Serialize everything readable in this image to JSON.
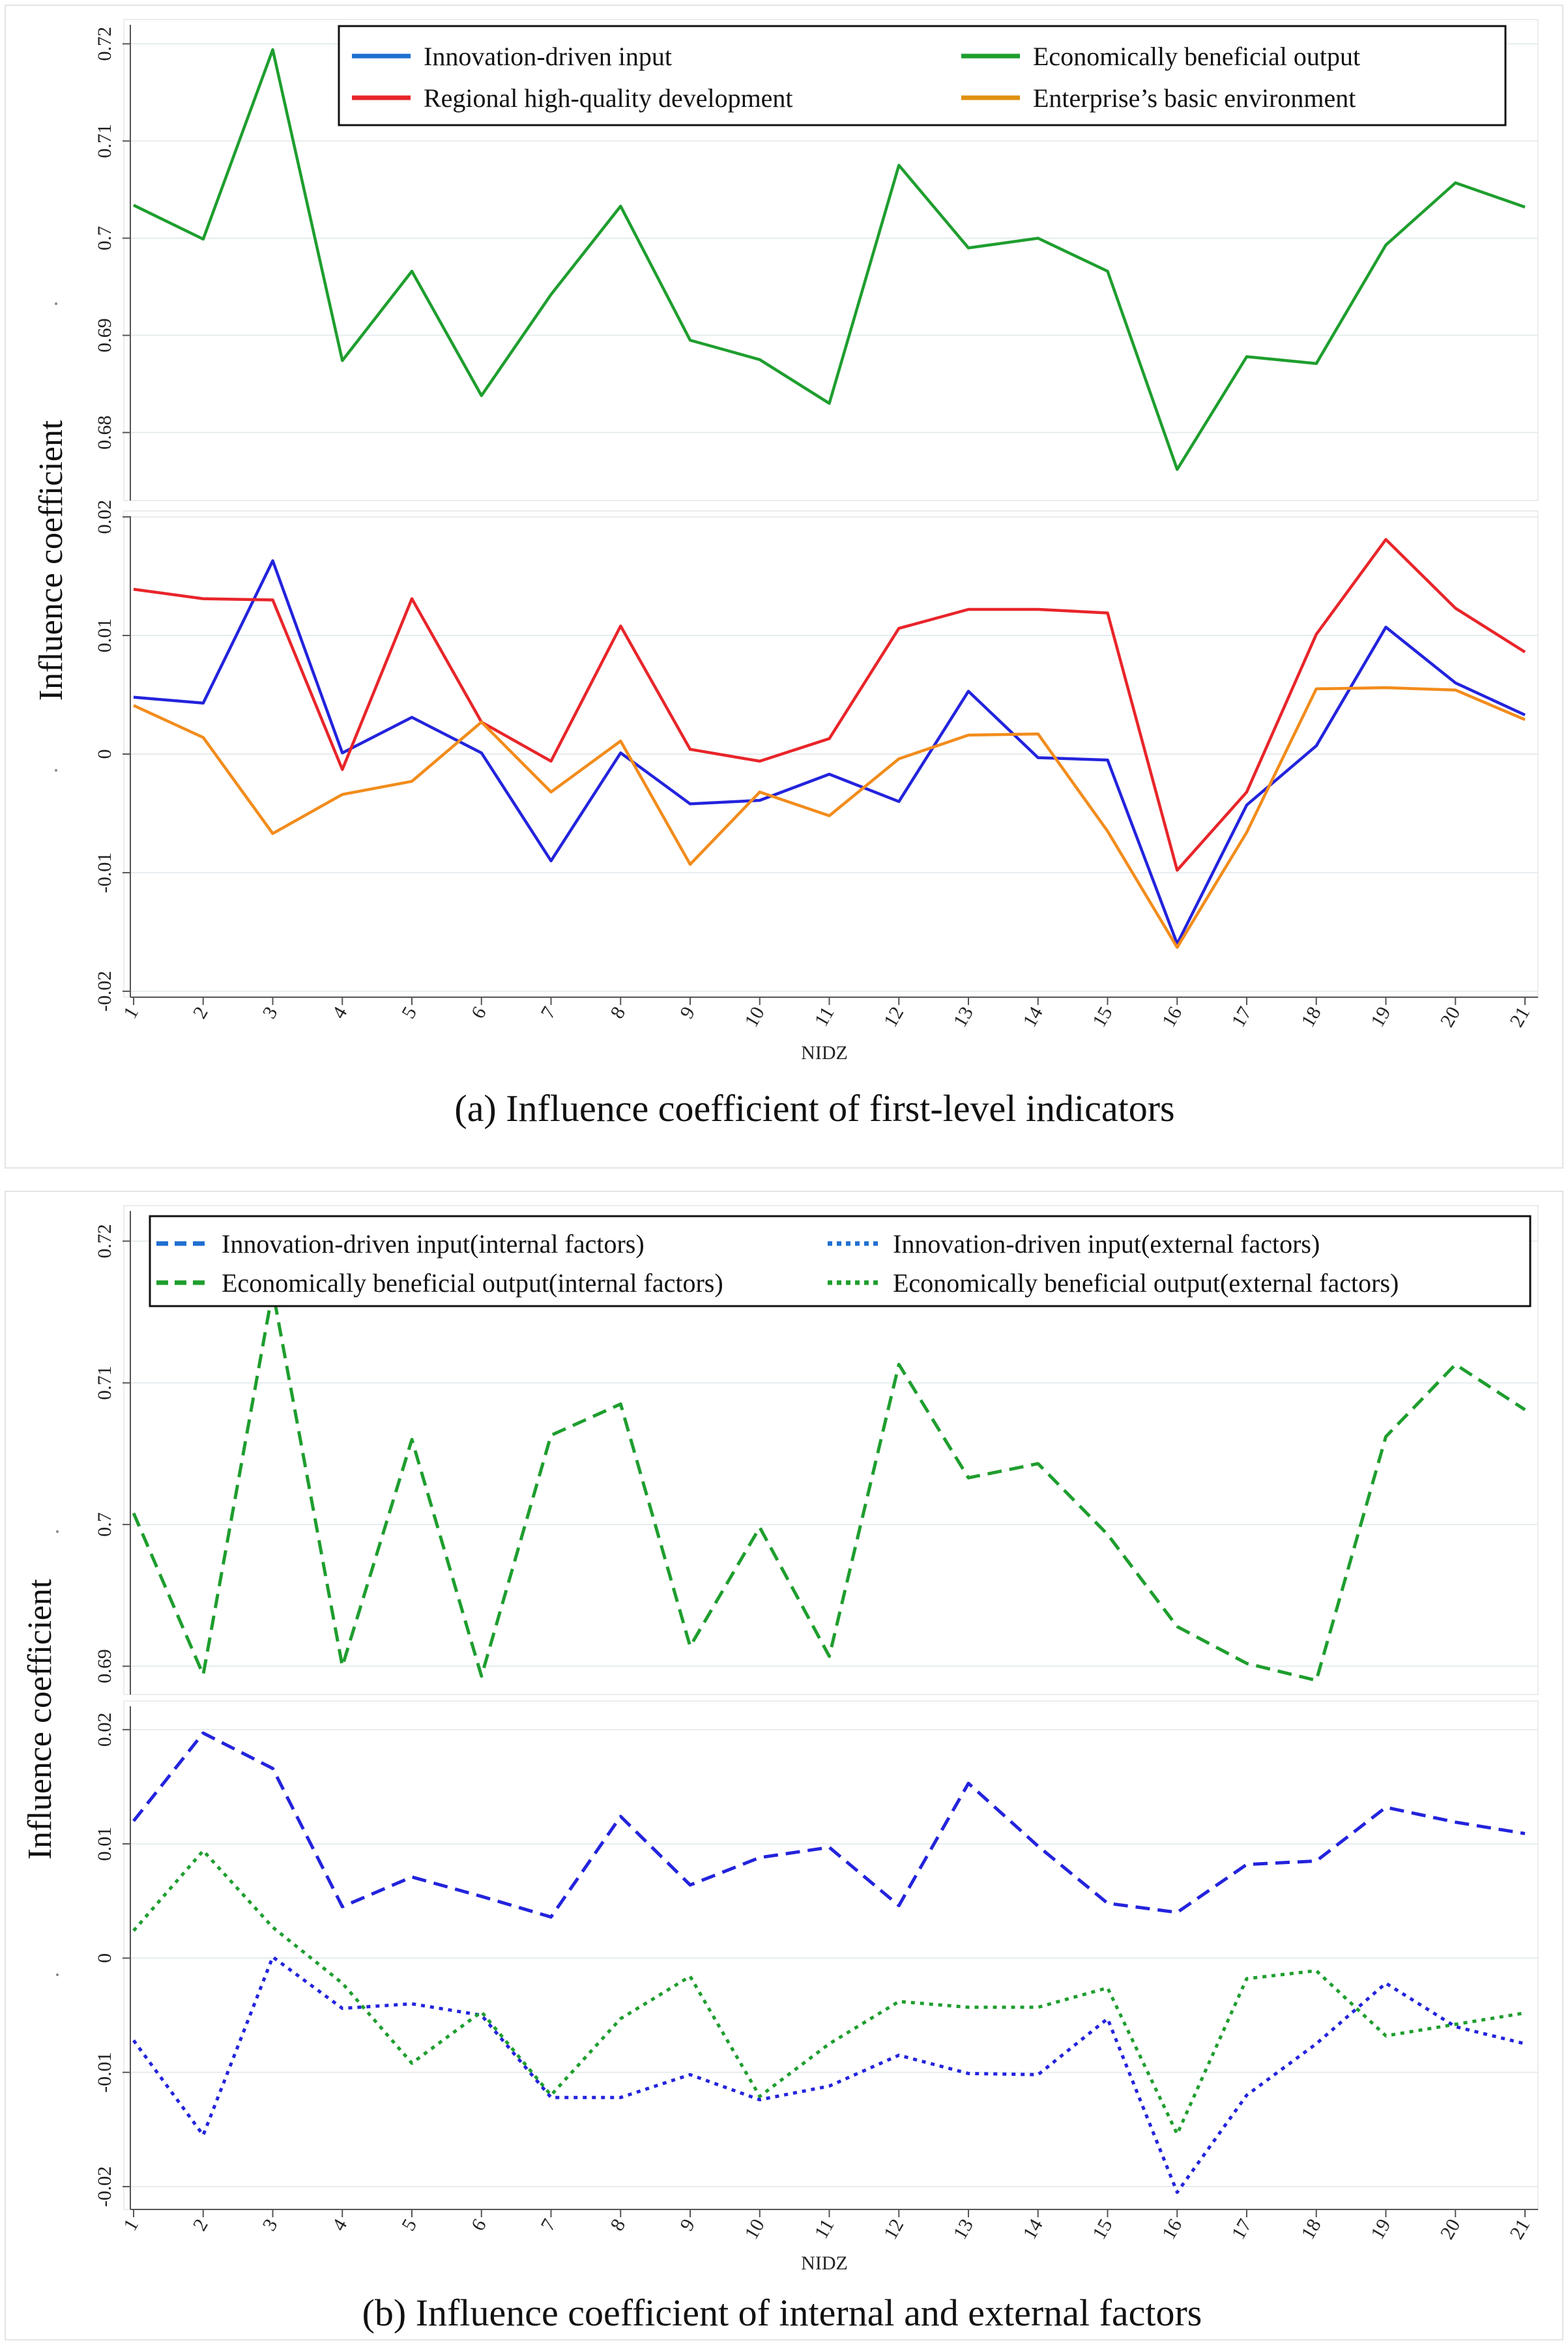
{
  "figure": {
    "caption_a": "(a) Influence coefficient of first-level indicators",
    "caption_b": "(b) Influence coefficient of internal and external factors",
    "y_axis_title": "Influence coefficient"
  },
  "chart_data": [
    {
      "id": "a-top",
      "type": "line",
      "xlabel": "",
      "ylabel": "Influence coefficient",
      "categories": [
        "1",
        "2",
        "3",
        "4",
        "5",
        "6",
        "7",
        "8",
        "9",
        "10",
        "11",
        "12",
        "13",
        "14",
        "15",
        "16",
        "17",
        "18",
        "19",
        "20",
        "21"
      ],
      "ylim": [
        0.673,
        0.7225
      ],
      "yticks": [
        0.68,
        0.69,
        0.7,
        0.71,
        0.72
      ],
      "ytick_labels": [
        "0.68",
        "0.69",
        "0.7",
        "0.71",
        "0.72"
      ],
      "series": [
        {
          "name": "Economically beneficial output",
          "color": "#1e9e2e",
          "dash": "solid",
          "values": [
            0.7034,
            0.6999,
            0.7194,
            0.6874,
            0.6966,
            0.6838,
            0.6942,
            0.7033,
            0.6895,
            0.6875,
            0.683,
            0.7075,
            0.699,
            0.7,
            0.6966,
            0.6762,
            0.6878,
            0.6871,
            0.6993,
            0.7057,
            0.7032
          ]
        }
      ]
    },
    {
      "id": "a-bottom",
      "type": "line",
      "xlabel": "NIDZ",
      "ylabel": "Influence coefficient",
      "categories": [
        "1",
        "2",
        "3",
        "4",
        "5",
        "6",
        "7",
        "8",
        "9",
        "10",
        "11",
        "12",
        "13",
        "14",
        "15",
        "16",
        "17",
        "18",
        "19",
        "20",
        "21"
      ],
      "ylim": [
        -0.0205,
        0.0205
      ],
      "yticks": [
        -0.02,
        -0.01,
        0,
        0.01,
        0.02
      ],
      "ytick_labels": [
        "-0.02",
        "-0.01",
        "0",
        "0.01",
        "0.02"
      ],
      "series": [
        {
          "name": "Innovation-driven input",
          "color": "#2323dd",
          "dash": "solid",
          "values": [
            0.0048,
            0.0043,
            0.0163,
            0.0001,
            0.0031,
            0.0001,
            -0.009,
            0.0001,
            -0.0042,
            -0.0039,
            -0.0017,
            -0.004,
            0.0053,
            -0.0003,
            -0.0005,
            -0.016,
            -0.0043,
            0.0007,
            0.0107,
            0.006,
            0.0033
          ]
        },
        {
          "name": "Regional high-quality development",
          "color": "#e8252a",
          "dash": "solid",
          "values": [
            0.0139,
            0.0131,
            0.013,
            -0.0013,
            0.0131,
            0.0027,
            -0.0006,
            0.0108,
            0.0004,
            -0.0006,
            0.0013,
            0.0106,
            0.0122,
            0.0122,
            0.0119,
            -0.0098,
            -0.0032,
            0.0101,
            0.0181,
            0.0123,
            0.0086
          ]
        },
        {
          "name": "Enterprise’s basic environment",
          "color": "#f28c1c",
          "dash": "solid",
          "values": [
            0.0041,
            0.0014,
            -0.0067,
            -0.0034,
            -0.0023,
            0.0027,
            -0.0032,
            0.0011,
            -0.0093,
            -0.0032,
            -0.0052,
            -0.0004,
            0.0016,
            0.0017,
            -0.0065,
            -0.0163,
            -0.0066,
            0.0055,
            0.0056,
            0.0054,
            0.0029
          ]
        }
      ]
    },
    {
      "id": "b-top",
      "type": "line",
      "xlabel": "",
      "ylabel": "Influence coefficient",
      "categories": [
        "1",
        "2",
        "3",
        "4",
        "5",
        "6",
        "7",
        "8",
        "9",
        "10",
        "11",
        "12",
        "13",
        "14",
        "15",
        "16",
        "17",
        "18",
        "19",
        "20",
        "21"
      ],
      "ylim": [
        0.688,
        0.7225
      ],
      "yticks": [
        0.69,
        0.7,
        0.71,
        0.72
      ],
      "ytick_labels": [
        "0.69",
        "0.7",
        "0.71",
        "0.72"
      ],
      "series": [
        {
          "name": "Economically beneficial output(internal factors)",
          "color": "#1e9e2e",
          "dash": "dashed",
          "values": [
            0.7008,
            0.6894,
            0.7165,
            0.69,
            0.706,
            0.6893,
            0.7063,
            0.7085,
            0.6914,
            0.6998,
            0.6907,
            0.7113,
            0.7033,
            0.7043,
            0.6993,
            0.6928,
            0.6902,
            0.689,
            0.7062,
            0.7113,
            0.7081
          ]
        }
      ]
    },
    {
      "id": "b-bottom",
      "type": "line",
      "xlabel": "NIDZ",
      "ylabel": "Influence coefficient",
      "categories": [
        "1",
        "2",
        "3",
        "4",
        "5",
        "6",
        "7",
        "8",
        "9",
        "10",
        "11",
        "12",
        "13",
        "14",
        "15",
        "16",
        "17",
        "18",
        "19",
        "20",
        "21"
      ],
      "ylim": [
        -0.022,
        0.0225
      ],
      "yticks": [
        -0.02,
        -0.01,
        0,
        0.01,
        0.02
      ],
      "ytick_labels": [
        "-0.02",
        "-0.01",
        "0",
        "0.01",
        "0.02"
      ],
      "series": [
        {
          "name": "Innovation-driven input(internal factors)",
          "color": "#2323dd",
          "dash": "dashed",
          "values": [
            0.012,
            0.0197,
            0.0166,
            0.0045,
            0.0071,
            0.0054,
            0.0036,
            0.0124,
            0.0064,
            0.0088,
            0.0097,
            0.0046,
            0.0153,
            0.0098,
            0.0048,
            0.004,
            0.0082,
            0.0085,
            0.0132,
            0.0119,
            0.0109
          ]
        },
        {
          "name": "Innovation-driven input(external factors)",
          "color": "#2323dd",
          "dash": "dotted",
          "values": [
            -0.0072,
            -0.0155,
            0.0001,
            -0.0044,
            -0.004,
            -0.005,
            -0.0122,
            -0.0122,
            -0.0102,
            -0.0124,
            -0.0112,
            -0.0085,
            -0.0101,
            -0.0102,
            -0.0053,
            -0.0205,
            -0.012,
            -0.0075,
            -0.0022,
            -0.006,
            -0.0075
          ]
        },
        {
          "name": "Economically beneficial output(external factors)",
          "color": "#1e9e2e",
          "dash": "dotted",
          "values": [
            0.0024,
            0.0094,
            0.0027,
            -0.0022,
            -0.0092,
            -0.0047,
            -0.012,
            -0.0053,
            -0.0016,
            -0.0121,
            -0.0075,
            -0.0038,
            -0.0043,
            -0.0043,
            -0.0026,
            -0.0154,
            -0.0018,
            -0.0011,
            -0.0068,
            -0.0058,
            -0.0048
          ]
        }
      ]
    }
  ],
  "legends": {
    "a": {
      "items": [
        {
          "label": "Innovation-driven input",
          "color": "#1f6fd0",
          "dash": "solid"
        },
        {
          "label": "Economically beneficial output",
          "color": "#1e9e2e",
          "dash": "solid"
        },
        {
          "label": "Regional high-quality development",
          "color": "#e8252a",
          "dash": "solid"
        },
        {
          "label": "Enterprise’s basic environment",
          "color": "#e0900f",
          "dash": "solid"
        }
      ]
    },
    "b": {
      "items": [
        {
          "label": "Innovation-driven input(internal factors)",
          "color": "#1f6fd0",
          "dash": "dashed"
        },
        {
          "label": "Innovation-driven input(external factors)",
          "color": "#1f6fd0",
          "dash": "dotted"
        },
        {
          "label": "Economically beneficial output(internal factors)",
          "color": "#1e9e2e",
          "dash": "dashed"
        },
        {
          "label": "Economically beneficial output(external factors)",
          "color": "#1e9e2e",
          "dash": "dotted"
        }
      ]
    }
  }
}
